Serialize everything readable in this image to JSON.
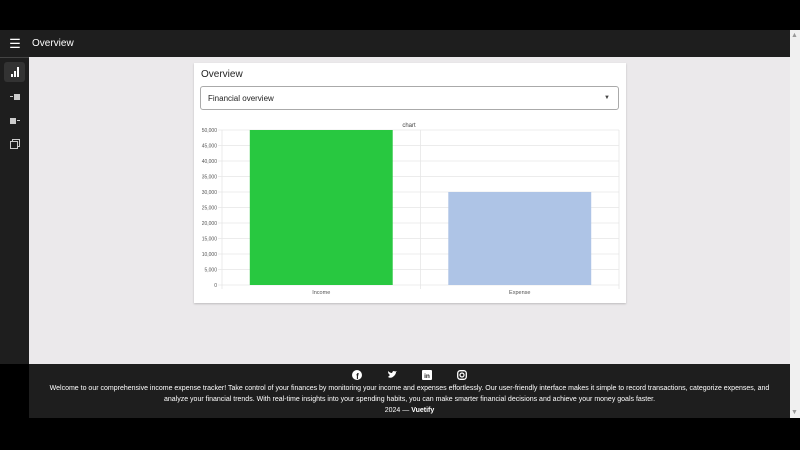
{
  "appbar": {
    "title": "Overview"
  },
  "sidebar": {
    "items": [
      {
        "icon": "bar-chart-icon",
        "active": true
      },
      {
        "icon": "income-icon"
      },
      {
        "icon": "expense-icon"
      },
      {
        "icon": "calendar-icon"
      }
    ]
  },
  "card": {
    "title": "Overview",
    "select_value": "Financial overview"
  },
  "chart_data": {
    "type": "bar",
    "title": "chart",
    "categories": [
      "Income",
      "Expense"
    ],
    "values": [
      50000,
      30000
    ],
    "colors": [
      "#28c840",
      "#aec4e6"
    ],
    "ylim": [
      0,
      50000
    ],
    "yticks": [
      "0",
      "5,000",
      "10,000",
      "15,000",
      "20,000",
      "25,000",
      "30,000",
      "35,000",
      "40,000",
      "45,000",
      "50,000"
    ],
    "grid": true
  },
  "footer": {
    "icons": [
      "facebook-icon",
      "twitter-icon",
      "linkedin-icon",
      "instagram-icon"
    ],
    "text": "Welcome to our comprehensive income expense tracker! Take control of your finances by monitoring your income and expenses effortlessly. Our user-friendly interface makes it simple to record transactions, categorize expenses, and analyze your financial trends. With real-time insights into your spending habits, you can make smarter financial decisions and achieve your money goals faster.",
    "year": "2024 —",
    "brand": "Vuetify"
  }
}
